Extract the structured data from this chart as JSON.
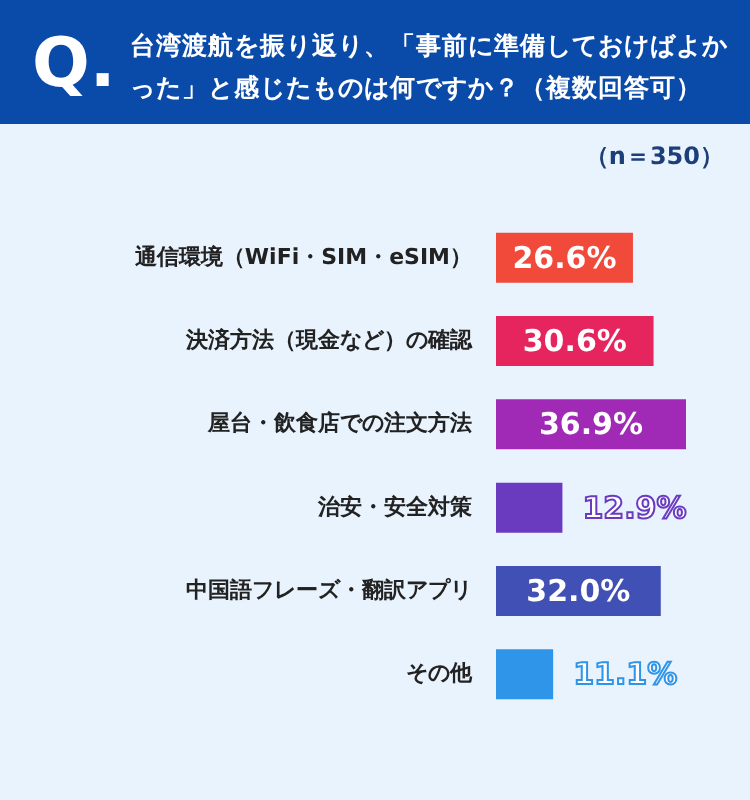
{
  "chart_data": {
    "type": "bar",
    "orientation": "horizontal",
    "title": "台湾渡航を振り返り、「事前に準備しておけばよかった」と感じたものは何ですか？（複数回答可）",
    "annotations": [
      "Q.",
      "（n＝350）"
    ],
    "categories": [
      "通信環境（WiFi・SIM・eSIM）",
      "決済方法（現金など）の確認",
      "屋台・飲食店での注文方法",
      "治安・安全対策",
      "中国語フレーズ・翻訳アプリ",
      "その他"
    ],
    "values": [
      26.6,
      30.6,
      36.9,
      12.9,
      32.0,
      11.1
    ],
    "value_labels": [
      "26.6%",
      "30.6%",
      "36.9%",
      "12.9%",
      "32.0%",
      "11.1%"
    ],
    "colors": [
      "#f24a3a",
      "#e6245e",
      "#a02ab5",
      "#6a3bbf",
      "#4150b5",
      "#2f95e8"
    ],
    "legend": false,
    "grid": false
  }
}
